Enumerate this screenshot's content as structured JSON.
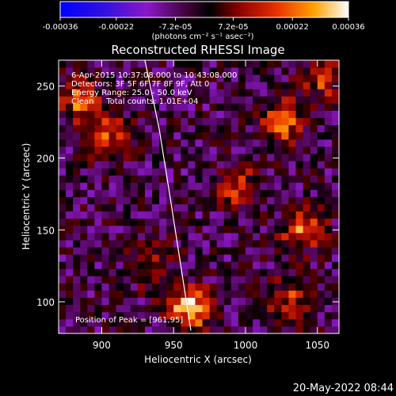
{
  "chart_data": {
    "type": "heatmap",
    "title": "Reconstructed RHESSI Image",
    "xlabel": "Heliocentric X (arcsec)",
    "ylabel": "Heliocentric Y (arcsec)",
    "xlim": [
      870,
      1065
    ],
    "ylim": [
      78,
      268
    ],
    "x_ticks": [
      900,
      950,
      1000,
      1050
    ],
    "y_ticks": [
      100,
      150,
      200,
      250
    ],
    "colorbar": {
      "ticks": [
        "-0.00036",
        "-0.00022",
        "-7.2e-05",
        "7.2e-05",
        "0.00022",
        "0.00036"
      ],
      "tick_values": [
        -0.00036,
        -0.00022,
        -7.2e-05,
        7.2e-05,
        0.00022,
        0.00036
      ],
      "range": [
        -0.00036,
        0.00036
      ],
      "units": "(photons cm⁻² s⁻¹ asec⁻²)"
    },
    "annotations": [
      "6-Apr-2015 10:37:08.000 to 10:43:08.000",
      "Detectors: 3F 5F 6F 7F 8F 9F, Att 0",
      "Energy Range: 25.0 - 50.0 keV",
      "Clean     Total counts: 1.01E+04"
    ],
    "peak_label": "Position of Peak = [961,95]",
    "peak": {
      "x": 961,
      "y": 95
    },
    "hot_spots": [
      {
        "x": 961,
        "y": 96,
        "intensity": 0.00036
      },
      {
        "x": 885,
        "y": 240,
        "intensity": 0.00026
      },
      {
        "x": 905,
        "y": 215,
        "intensity": 0.00022
      },
      {
        "x": 1025,
        "y": 225,
        "intensity": 0.00028
      },
      {
        "x": 1040,
        "y": 150,
        "intensity": 0.00025
      },
      {
        "x": 1030,
        "y": 100,
        "intensity": 0.0002
      },
      {
        "x": 995,
        "y": 180,
        "intensity": 0.00018
      },
      {
        "x": 1055,
        "y": 258,
        "intensity": 0.00022
      },
      {
        "x": 935,
        "y": 125,
        "intensity": 0.00015
      }
    ],
    "limb_arc": [
      [
        930,
        268
      ],
      [
        940,
        220
      ],
      [
        948,
        170
      ],
      [
        955,
        125
      ],
      [
        962,
        80
      ]
    ]
  },
  "footer": {
    "timestamp": "20-May-2022 08:44"
  }
}
